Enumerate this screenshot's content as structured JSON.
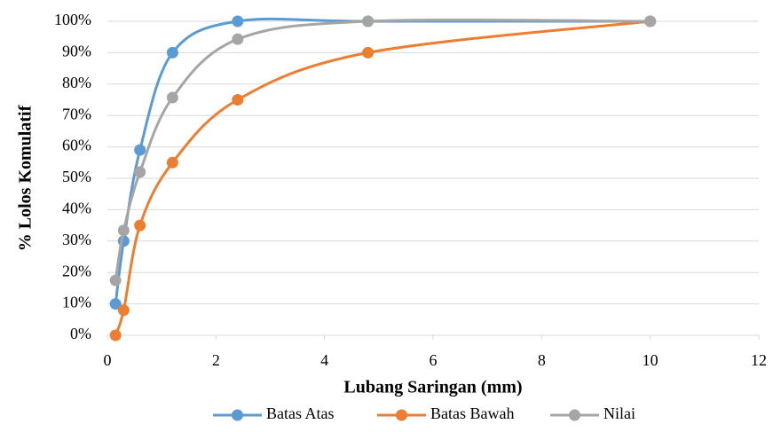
{
  "chart_data": {
    "type": "scatter-smooth",
    "xlabel": "Lubang Saringan (mm)",
    "ylabel": "% Lolos Komulatif",
    "xlim": [
      0,
      12
    ],
    "xticks": [
      0,
      2,
      4,
      6,
      8,
      10,
      12
    ],
    "ylim": [
      0,
      100
    ],
    "yticks": [
      {
        "value": 0,
        "label": "0%"
      },
      {
        "value": 10,
        "label": "10%"
      },
      {
        "value": 20,
        "label": "20%"
      },
      {
        "value": 30,
        "label": "30%"
      },
      {
        "value": 40,
        "label": "40%"
      },
      {
        "value": 50,
        "label": "50%"
      },
      {
        "value": 60,
        "label": "60%"
      },
      {
        "value": 70,
        "label": "70%"
      },
      {
        "value": 80,
        "label": "80%"
      },
      {
        "value": 90,
        "label": "90%"
      },
      {
        "value": 100,
        "label": "100%"
      }
    ],
    "grid": true,
    "legend": "bottom",
    "x": [
      0.15,
      0.3,
      0.6,
      1.2,
      2.4,
      4.8,
      10
    ],
    "series": [
      {
        "name": "Batas Atas",
        "color": "#5b9bd5",
        "values": [
          10,
          30,
          59,
          90,
          100,
          100,
          100
        ]
      },
      {
        "name": "Batas Bawah",
        "color": "#ed7d31",
        "values": [
          0,
          8,
          35,
          55,
          75,
          90,
          100
        ]
      },
      {
        "name": "Nilai",
        "color": "#a5a5a5",
        "values": [
          17.5,
          33.4,
          52,
          75.7,
          94.3,
          100,
          100
        ]
      }
    ]
  }
}
